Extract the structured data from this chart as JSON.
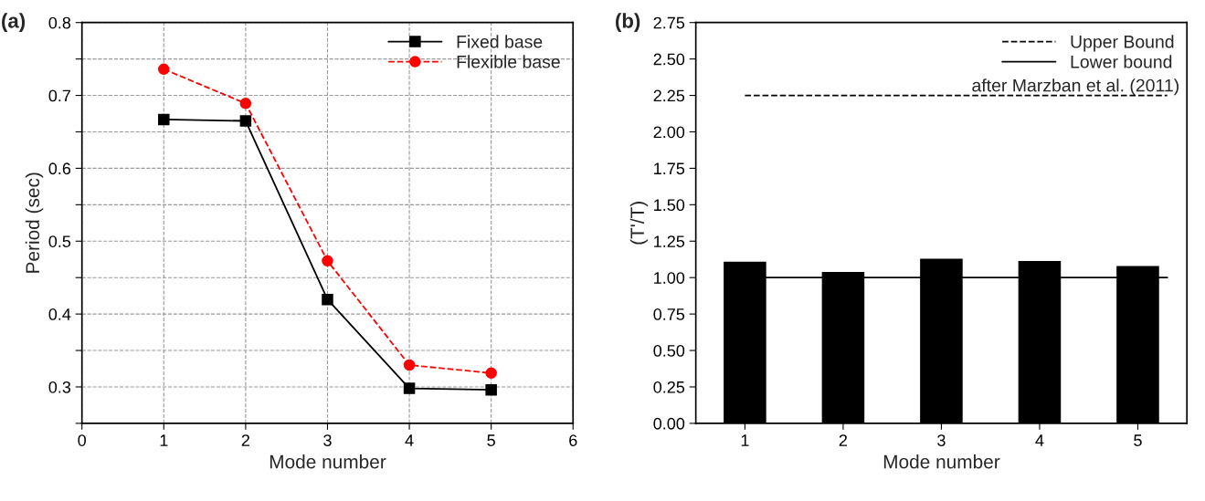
{
  "chart_data": [
    {
      "type": "line",
      "title": "(a)",
      "xlabel": "Mode number",
      "ylabel": "Period (sec)",
      "x": [
        1,
        2,
        3,
        4,
        5
      ],
      "series": [
        {
          "name": "Fixed base",
          "color": "#000000",
          "values": [
            0.667,
            0.665,
            0.42,
            0.298,
            0.296
          ],
          "marker": "square",
          "line_style": "solid"
        },
        {
          "name": "Flexible base",
          "color": "#ff0000",
          "values": [
            0.736,
            0.689,
            0.473,
            0.33,
            0.319
          ],
          "marker": "circle",
          "line_style": "dashed"
        }
      ],
      "xlim": [
        0,
        6
      ],
      "xticks": [
        0,
        1,
        2,
        3,
        4,
        5,
        6
      ],
      "ylim": [
        0.25,
        0.8
      ],
      "yticks": [
        {
          "value": 0.25,
          "label": null
        },
        0.3,
        {
          "value": 0.35,
          "label": null
        },
        0.4,
        {
          "value": 0.45,
          "label": null
        },
        0.5,
        {
          "value": 0.55,
          "label": null
        },
        0.6,
        {
          "value": 0.65,
          "label": null
        },
        0.7,
        {
          "value": 0.75,
          "label": null
        },
        0.8
      ],
      "grid": true,
      "legend": "top right"
    },
    {
      "type": "bar",
      "title": "(b)",
      "xlabel": "Mode number",
      "ylabel": "(T'/T)",
      "categories": [
        "1",
        "2",
        "3",
        "4",
        "5"
      ],
      "series": [
        {
          "type": "bar",
          "color": "#000000",
          "values": [
            1.105,
            1.035,
            1.125,
            1.11,
            1.075
          ]
        }
      ],
      "ref_lines": [
        {
          "axis": "y",
          "value": 2.25,
          "label": "Upper Bound",
          "color": "#000000",
          "line_style": "dashed"
        },
        {
          "axis": "y",
          "value": 1.0,
          "label": "Lower bound",
          "color": "#000000",
          "line_style": "solid"
        }
      ],
      "annotations": [
        "after Marzban et al. (2011)"
      ],
      "ylim": [
        0,
        2.75
      ],
      "yticks": [
        {
          "value": 0,
          "label": "0.00"
        },
        {
          "value": 0.25,
          "label": "0.25"
        },
        {
          "value": 0.5,
          "label": "0.50"
        },
        {
          "value": 0.75,
          "label": "0.75"
        },
        {
          "value": 1,
          "label": "1.00"
        },
        {
          "value": 1.25,
          "label": "1.25"
        },
        {
          "value": 1.5,
          "label": "1.50"
        },
        {
          "value": 1.75,
          "label": "1.75"
        },
        {
          "value": 2,
          "label": "2.00"
        },
        {
          "value": 2.25,
          "label": "2.25"
        },
        {
          "value": 2.5,
          "label": "2.50"
        },
        {
          "value": 2.75,
          "label": "2.75"
        }
      ],
      "grid": false,
      "legend": "top right"
    }
  ]
}
